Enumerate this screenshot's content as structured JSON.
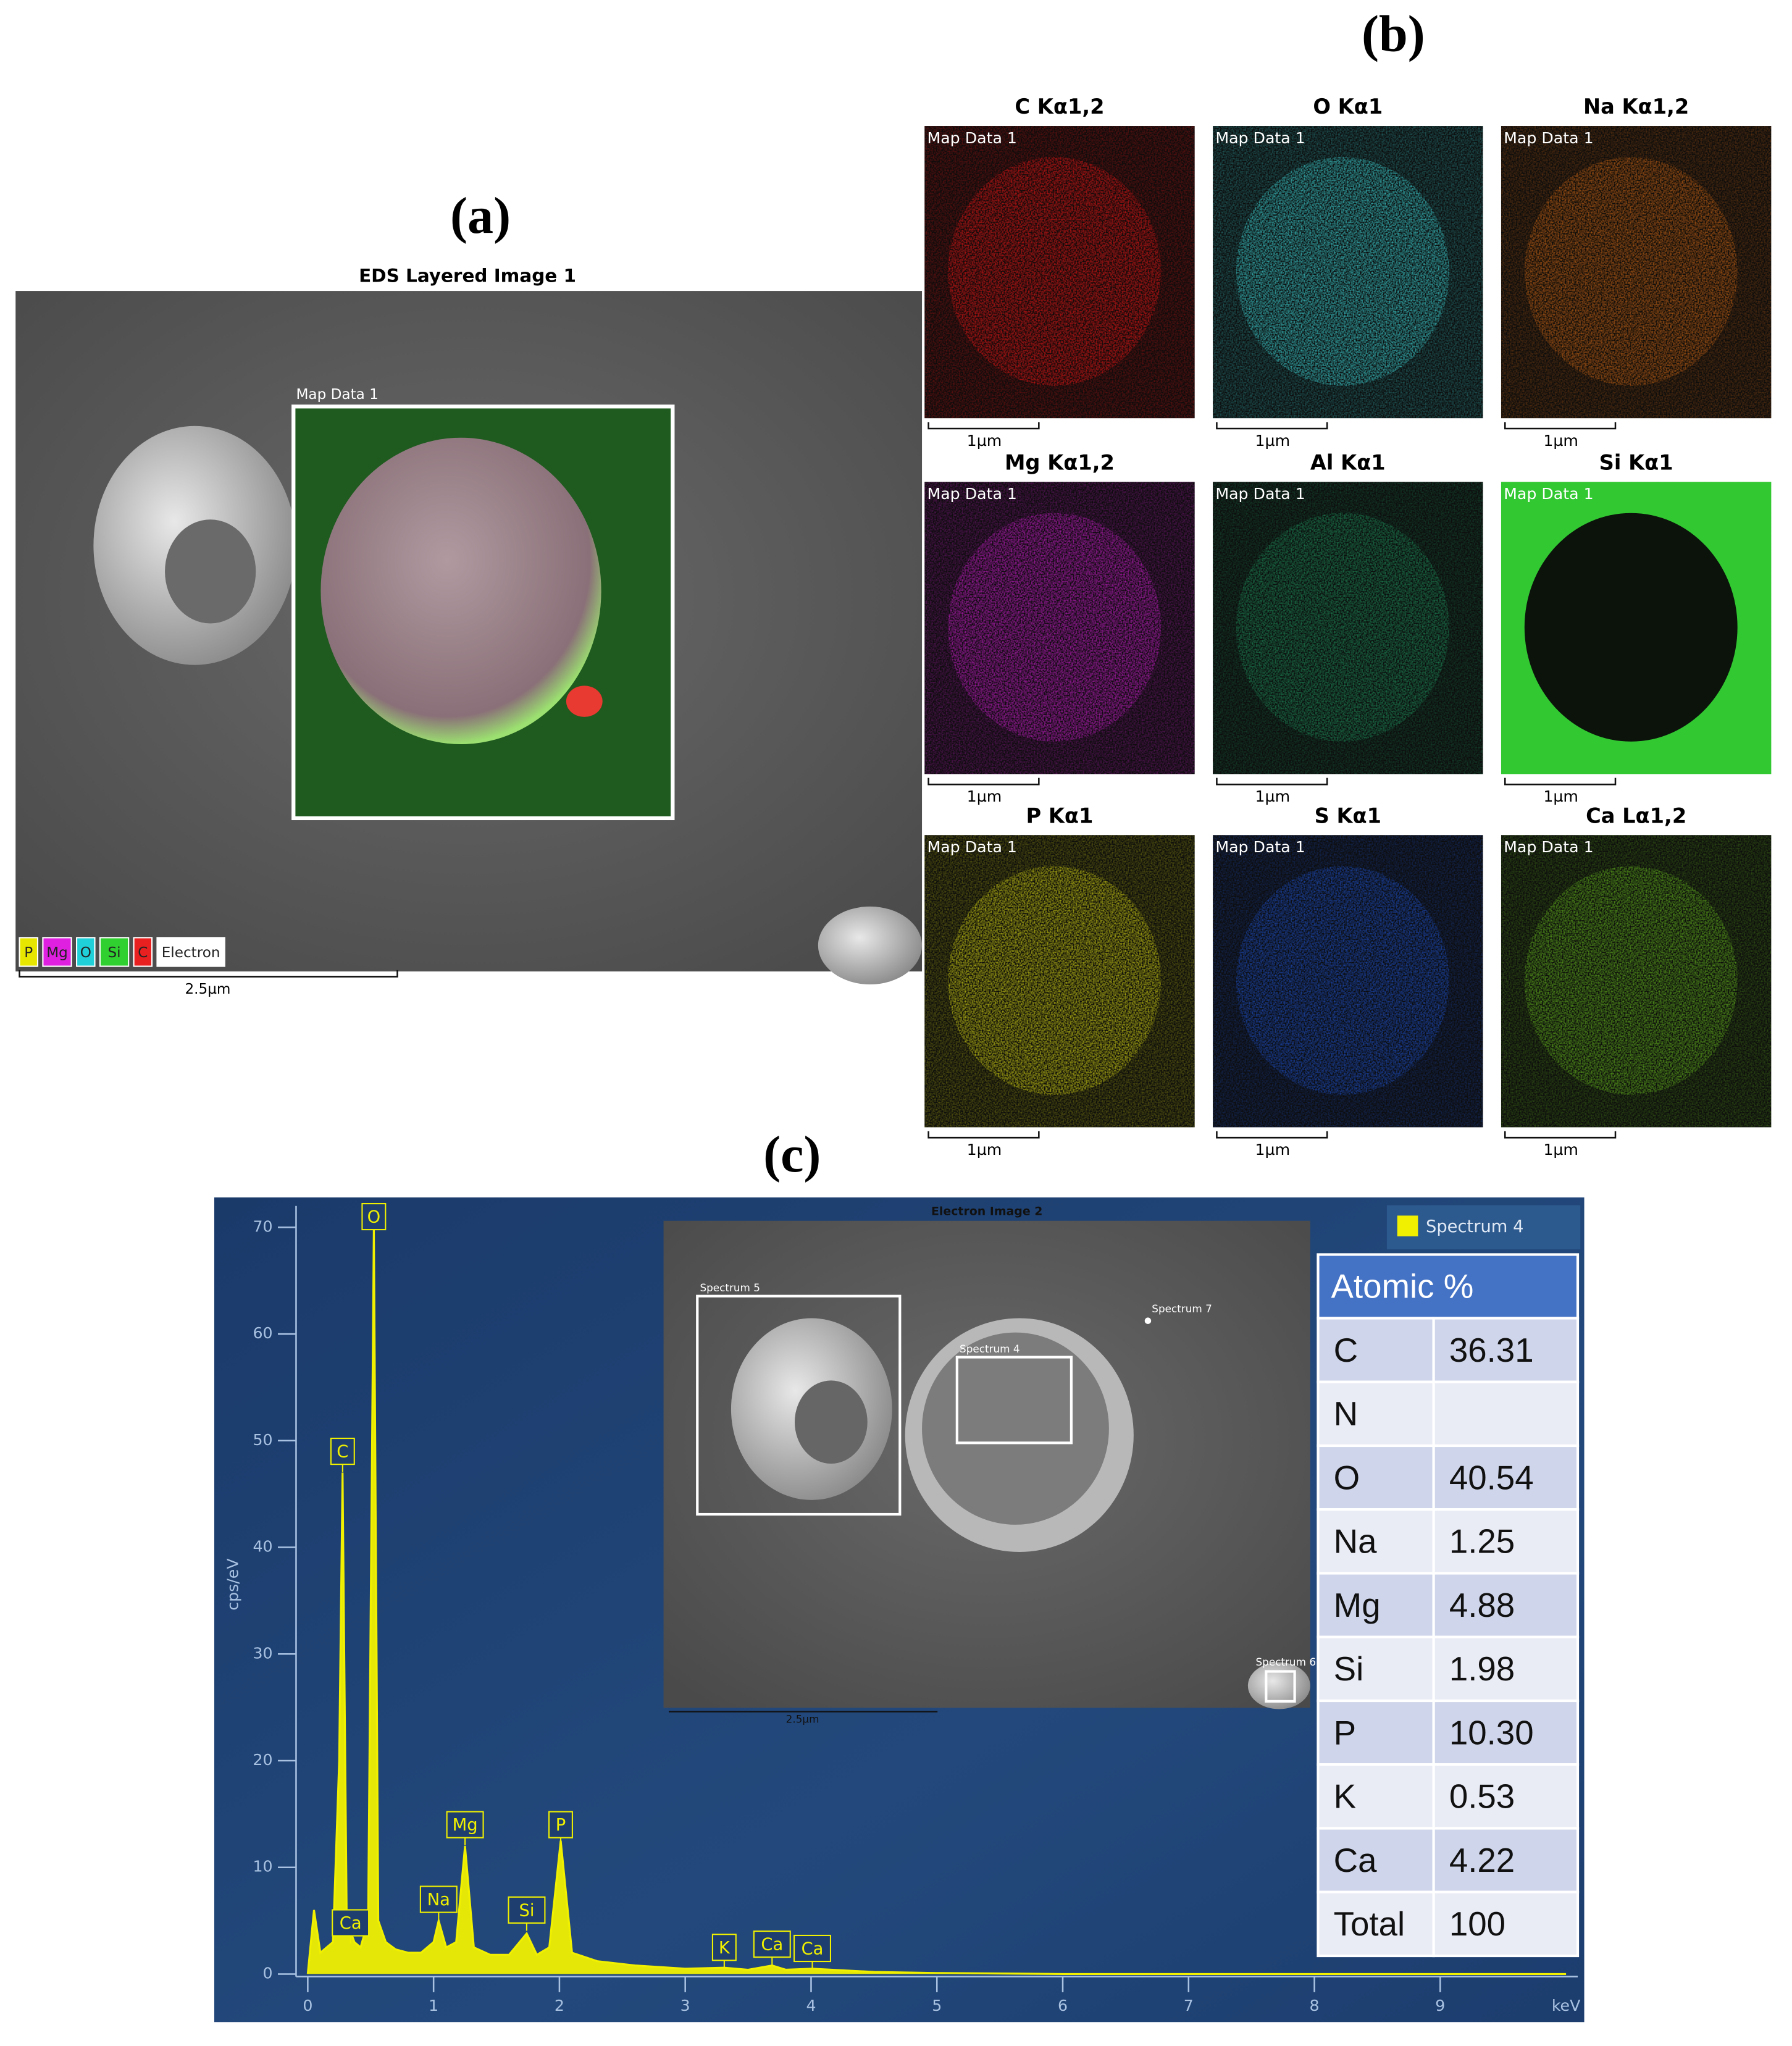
{
  "panel_a": {
    "label": "(a)",
    "title": "EDS Layered Image 1",
    "map_label": "Map Data 1",
    "legend": [
      {
        "text": "P",
        "color": "#e6e600"
      },
      {
        "text": "Mg",
        "color": "#e020e0"
      },
      {
        "text": "O",
        "color": "#20d0d8"
      },
      {
        "text": "Si",
        "color": "#30d030"
      },
      {
        "text": "C",
        "color": "#e82020"
      },
      {
        "text": "Electron",
        "color": "#ffffff"
      }
    ],
    "scale_bar": "2.5µm"
  },
  "panel_b": {
    "label": "(b)",
    "maps": [
      {
        "title": "C Kα1,2",
        "color": "#e81414",
        "map_label": "Map Data 1",
        "scale_bar": "1µm"
      },
      {
        "title": "O Kα1",
        "color": "#3fd6d8",
        "map_label": "Map Data 1",
        "scale_bar": "1µm"
      },
      {
        "title": "Na Kα1,2",
        "color": "#c86414",
        "map_label": "Map Data 1",
        "scale_bar": "1µm"
      },
      {
        "title": "Mg Kα1,2",
        "color": "#c81ec8",
        "map_label": "Map Data 1",
        "scale_bar": "1µm"
      },
      {
        "title": "Al Kα1",
        "color": "#1e8c5a",
        "map_label": "Map Data 1",
        "scale_bar": "1µm"
      },
      {
        "title": "Si Kα1",
        "color": "#32c832",
        "map_label": "Map Data 1",
        "scale_bar": "1µm",
        "inverted": true
      },
      {
        "title": "P Kα1",
        "color": "#d2d214",
        "map_label": "Map Data 1",
        "scale_bar": "1µm"
      },
      {
        "title": "S Kα1",
        "color": "#1e50c8",
        "map_label": "Map Data 1",
        "scale_bar": "1µm"
      },
      {
        "title": "Ca Lα1,2",
        "color": "#64b41e",
        "map_label": "Map Data 1",
        "scale_bar": "1µm"
      }
    ]
  },
  "chart_data": {
    "type": "area",
    "label": "(c)",
    "y_label": "cps/eV",
    "x_label": "keV",
    "x": [
      0.0,
      0.05,
      0.1,
      0.2,
      0.25,
      0.277,
      0.31,
      0.34,
      0.37,
      0.42,
      0.48,
      0.525,
      0.56,
      0.62,
      0.7,
      0.8,
      0.9,
      1.0,
      1.04,
      1.1,
      1.18,
      1.25,
      1.32,
      1.45,
      1.6,
      1.74,
      1.82,
      1.92,
      2.01,
      2.1,
      2.3,
      2.6,
      3.0,
      3.31,
      3.5,
      3.69,
      3.8,
      4.01,
      4.5,
      5.0,
      6.0,
      10.0
    ],
    "series": [
      {
        "name": "Spectrum 4",
        "color": "#f0f000",
        "values": [
          0,
          6,
          2,
          3,
          20,
          47,
          5,
          4,
          3,
          2.5,
          5,
          70,
          5,
          3,
          2.3,
          2,
          2,
          3,
          5,
          2.5,
          3,
          12,
          2.5,
          1.8,
          1.8,
          3.8,
          1.8,
          2.5,
          12.5,
          2,
          1.2,
          0.8,
          0.5,
          0.6,
          0.4,
          0.8,
          0.4,
          0.5,
          0.2,
          0.1,
          0,
          0
        ]
      }
    ],
    "xlim": [
      0,
      10
    ],
    "xticks": [
      0,
      1,
      2,
      3,
      4,
      5,
      6,
      7,
      8,
      9
    ],
    "ylim": [
      0,
      72
    ],
    "yticks": [
      0,
      10,
      20,
      30,
      40,
      50,
      60,
      70
    ],
    "annotations": [
      {
        "text": "C",
        "x": 0.277,
        "y": 49
      },
      {
        "text": "O",
        "x": 0.525,
        "y": 71
      },
      {
        "text": "Ca",
        "x": 0.34,
        "y": 4.8
      },
      {
        "text": "Na",
        "x": 1.04,
        "y": 7
      },
      {
        "text": "Mg",
        "x": 1.25,
        "y": 14
      },
      {
        "text": "Si",
        "x": 1.74,
        "y": 6
      },
      {
        "text": "P",
        "x": 2.01,
        "y": 14
      },
      {
        "text": "K",
        "x": 3.31,
        "y": 2.5
      },
      {
        "text": "Ca",
        "x": 3.69,
        "y": 2.8
      },
      {
        "text": "Ca",
        "x": 4.01,
        "y": 2.4
      }
    ]
  },
  "inset": {
    "title": "Electron Image 2",
    "labels": [
      "Spectrum 5",
      "Spectrum 4",
      "Spectrum 7",
      "Spectrum 6"
    ],
    "scale_bar": "2.5µm"
  },
  "table": {
    "header": "Atomic %",
    "rows": [
      [
        "C",
        "36.31"
      ],
      [
        "N"
      ],
      [
        "O",
        "40.54"
      ],
      [
        "Na",
        "1.25"
      ],
      [
        "Mg",
        "4.88"
      ],
      [
        "Si",
        "1.98"
      ],
      [
        "P",
        "10.30"
      ],
      [
        "K",
        "0.53"
      ],
      [
        "Ca",
        "4.22"
      ],
      [
        "Total",
        "100"
      ]
    ]
  }
}
